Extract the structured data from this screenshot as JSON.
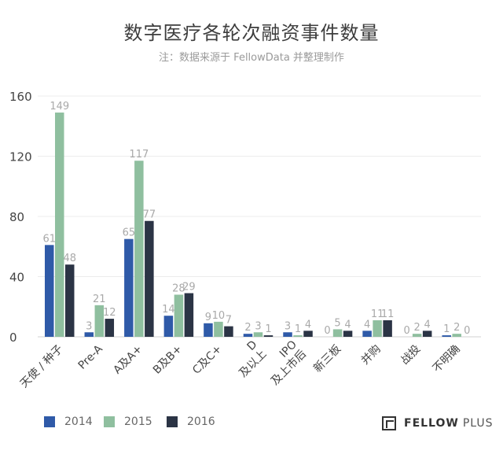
{
  "chart_data": {
    "type": "bar",
    "title": "数字医疗各轮次融资事件数量",
    "subtitle": "注：数据来源于 FellowData 并整理制作",
    "categories": [
      "天使 / 种子",
      "Pre-A",
      "A及A+",
      "B及B+",
      "C及C+",
      "D\n及以上",
      "IPO\n及上市后",
      "新三板",
      "并购",
      "战投",
      "不明确"
    ],
    "series": [
      {
        "name": "2014",
        "color": "#2f5aa8",
        "values": [
          61,
          3,
          65,
          14,
          9,
          2,
          3,
          0,
          4,
          0,
          1
        ]
      },
      {
        "name": "2015",
        "color": "#8fbf9f",
        "values": [
          149,
          21,
          117,
          28,
          10,
          3,
          1,
          5,
          11,
          2,
          2
        ]
      },
      {
        "name": "2016",
        "color": "#2b3445",
        "values": [
          48,
          12,
          77,
          29,
          7,
          1,
          4,
          4,
          11,
          4,
          0
        ]
      }
    ],
    "ylim": [
      0,
      160
    ],
    "yticks": [
      0,
      40,
      80,
      120,
      160
    ],
    "xlabel": "",
    "ylabel": "",
    "grid": true,
    "legend": "bottom-left"
  },
  "brand": {
    "bold": "FELLOW",
    "light": "PLUS"
  }
}
